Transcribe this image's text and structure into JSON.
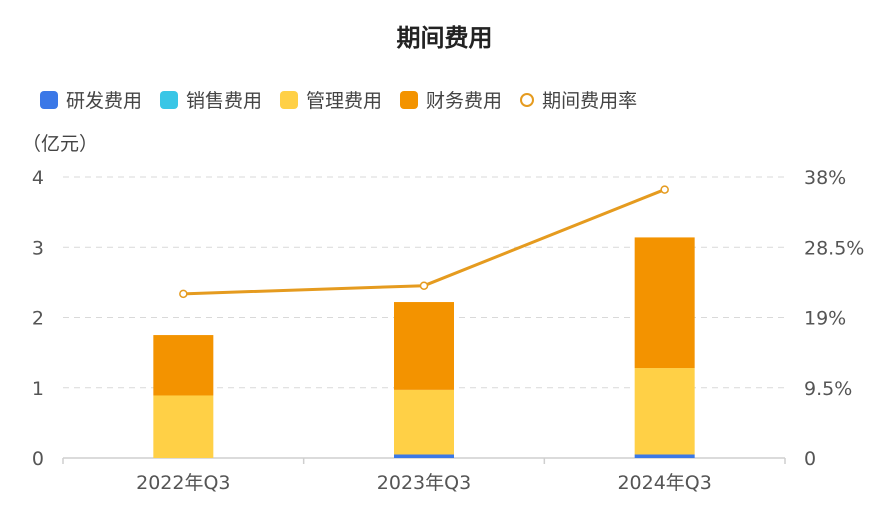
{
  "chart_data": {
    "type": "bar",
    "title": "期间费用",
    "ylabel_left": "（亿元）",
    "categories": [
      "2022年Q3",
      "2023年Q3",
      "2024年Q3"
    ],
    "series": [
      {
        "name": "研发费用",
        "values": [
          0.0,
          0.05,
          0.05
        ],
        "color": "#3b78e7"
      },
      {
        "name": "销售费用",
        "values": [
          0.0,
          0.0,
          0.0
        ],
        "color": "#39c6e6"
      },
      {
        "name": "管理费用",
        "values": [
          0.89,
          0.92,
          1.23
        ],
        "color": "#ffd046"
      },
      {
        "name": "财务费用",
        "values": [
          0.86,
          1.25,
          1.86
        ],
        "color": "#f39300"
      }
    ],
    "line_series": {
      "name": "期间费用率",
      "values": [
        0.222,
        0.233,
        0.363
      ],
      "color": "#e59b1f"
    },
    "y_left_ticks": [
      "0",
      "1",
      "2",
      "3",
      "4"
    ],
    "y_left_range": [
      0,
      4
    ],
    "y_right_ticks": [
      "0",
      "9.5%",
      "19%",
      "28.5%",
      "38%"
    ],
    "y_right_range": [
      0,
      0.38
    ],
    "grid": true,
    "legend_position": "top-left"
  }
}
